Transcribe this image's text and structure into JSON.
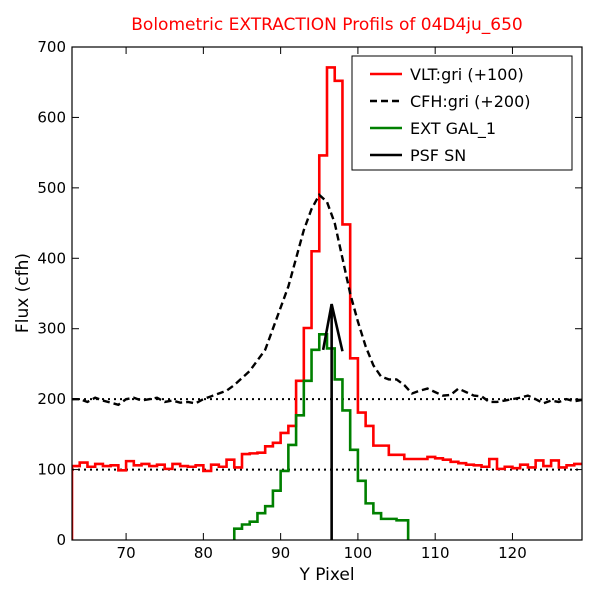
{
  "chart_data": {
    "type": "line",
    "title": "Bolometric EXTRACTION Profils of 04D4ju_650",
    "xlabel": "Y Pixel",
    "ylabel": "Flux (cfh)",
    "xlim": [
      63,
      129
    ],
    "ylim": [
      0,
      700
    ],
    "xticks": [
      70,
      80,
      90,
      100,
      110,
      120
    ],
    "yticks": [
      0,
      100,
      200,
      300,
      400,
      500,
      600,
      700
    ],
    "legend_position": "top-right",
    "reference_lines": [
      100,
      200
    ],
    "series": [
      {
        "name": "VLT:gri (+100)",
        "style": "steps",
        "color": "#ff0000",
        "x": [
          63,
          64,
          65,
          66,
          67,
          68,
          69,
          70,
          71,
          72,
          73,
          74,
          75,
          76,
          77,
          78,
          79,
          80,
          81,
          82,
          83,
          84,
          85,
          86,
          87,
          88,
          89,
          90,
          91,
          92,
          93,
          94,
          95,
          96,
          97,
          98,
          99,
          100,
          101,
          102,
          103,
          104,
          105,
          106,
          107,
          108,
          109,
          110,
          111,
          112,
          113,
          114,
          115,
          116,
          117,
          118,
          119,
          120,
          121,
          122,
          123,
          124,
          125,
          126,
          127,
          128
        ],
        "y": [
          105,
          110,
          104,
          108,
          105,
          106,
          99,
          112,
          106,
          108,
          105,
          107,
          101,
          108,
          105,
          104,
          106,
          98,
          107,
          104,
          114,
          103,
          122,
          123,
          124,
          133,
          138,
          152,
          162,
          226,
          301,
          410,
          546,
          671,
          652,
          448,
          258,
          181,
          162,
          134,
          134,
          121,
          121,
          115,
          115,
          115,
          118,
          116,
          114,
          111,
          109,
          107,
          106,
          104,
          115,
          101,
          104,
          102,
          107,
          103,
          113,
          105,
          113,
          103,
          106,
          108
        ],
        "end_x": 129
      },
      {
        "name": "CFH:gri (+200)",
        "style": "dashed",
        "color": "#000000",
        "x": [
          63,
          64,
          65,
          66,
          67,
          68,
          69,
          70,
          71,
          72,
          73,
          74,
          75,
          76,
          77,
          78,
          79,
          80,
          81,
          82,
          83,
          84,
          85,
          86,
          87,
          88,
          89,
          90,
          91,
          92,
          93,
          94,
          95,
          96,
          97,
          98,
          99,
          100,
          101,
          102,
          103,
          104,
          105,
          106,
          107,
          108,
          109,
          110,
          111,
          112,
          113,
          114,
          115,
          116,
          117,
          118,
          119,
          120,
          121,
          122,
          123,
          124,
          125,
          126,
          127,
          128,
          129
        ],
        "y": [
          200,
          200,
          196,
          202,
          198,
          195,
          192,
          200,
          202,
          198,
          200,
          202,
          196,
          198,
          195,
          196,
          194,
          200,
          204,
          208,
          212,
          220,
          230,
          240,
          255,
          270,
          300,
          330,
          360,
          400,
          440,
          470,
          490,
          480,
          450,
          400,
          350,
          310,
          275,
          248,
          232,
          228,
          228,
          220,
          208,
          212,
          215,
          210,
          205,
          206,
          215,
          210,
          205,
          204,
          196,
          196,
          198,
          200,
          202,
          205,
          200,
          194,
          198,
          196,
          200,
          197,
          199
        ]
      },
      {
        "name": "EXT GAL_1",
        "style": "steps",
        "color": "#008000",
        "x": [
          84,
          85,
          86,
          87,
          88,
          89,
          90,
          91,
          92,
          93,
          94,
          95,
          96,
          97,
          98,
          99,
          100,
          101,
          102,
          103,
          104,
          105
        ],
        "y": [
          16,
          22,
          26,
          38,
          48,
          70,
          98,
          135,
          177,
          226,
          270,
          292,
          272,
          228,
          184,
          128,
          84,
          52,
          38,
          30,
          30,
          28
        ],
        "end_x": 106.5
      },
      {
        "name": "PSF SN",
        "style": "solid",
        "color": "#000000",
        "x": [
          95.5,
          96.6,
          98
        ],
        "y": [
          270,
          335,
          268
        ],
        "stem_x": 96.6
      }
    ]
  }
}
